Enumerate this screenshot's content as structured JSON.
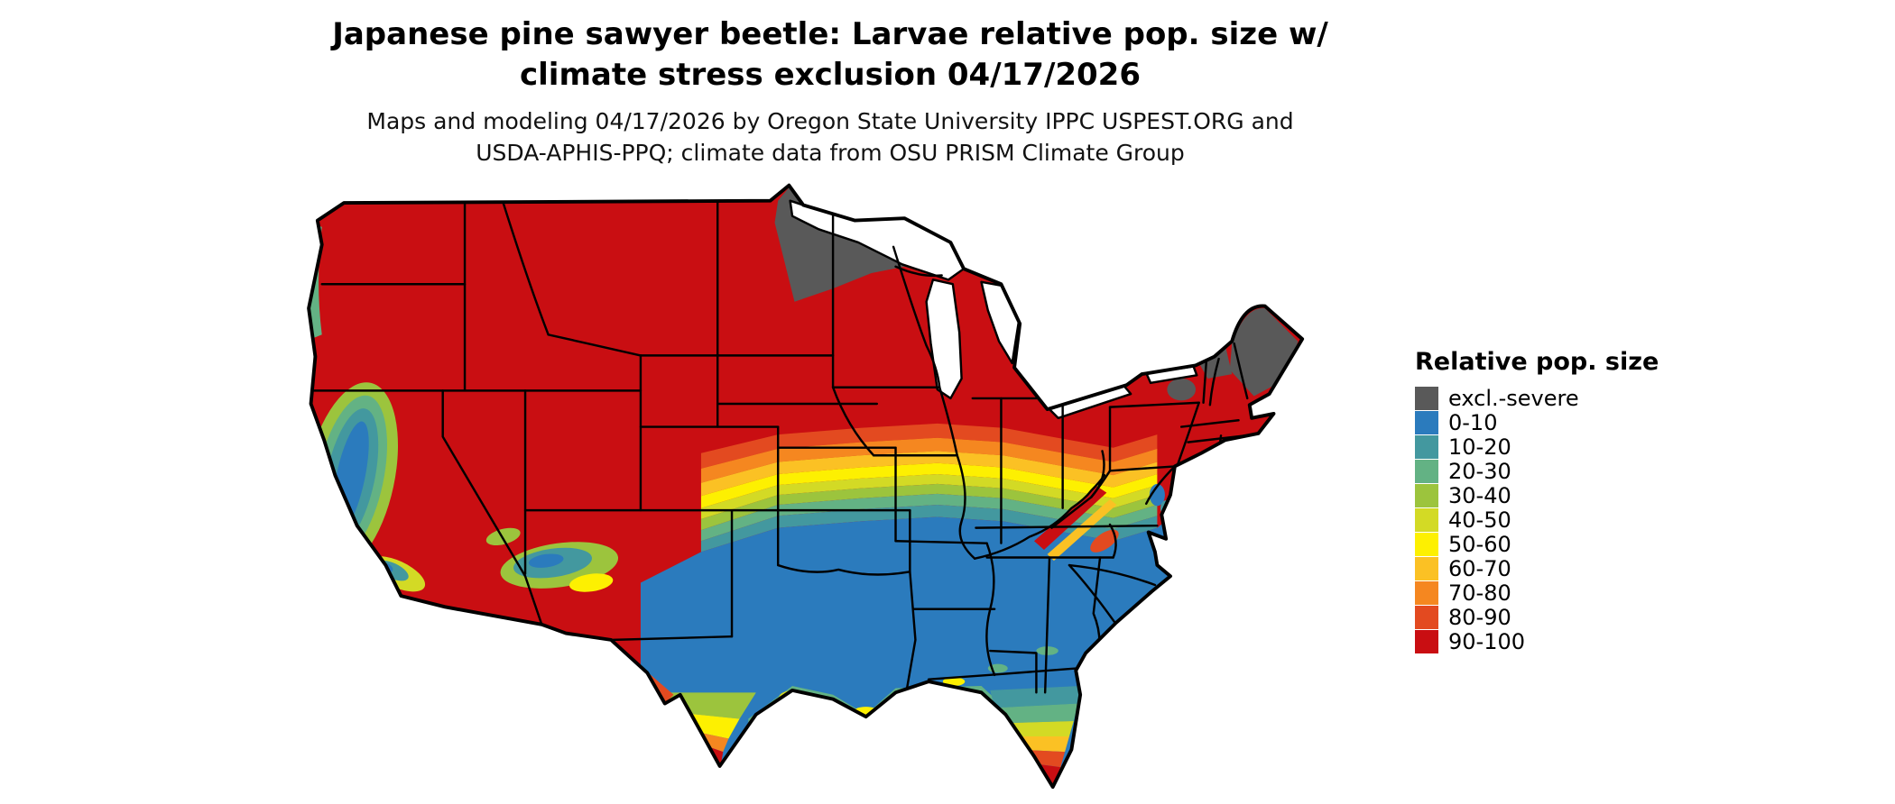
{
  "title": "Japanese pine sawyer beetle: Larvae relative pop. size w/ climate stress exclusion 04/17/2026",
  "subtitle": "Maps and modeling 04/17/2026 by Oregon State University IPPC USPEST.ORG and USDA-APHIS-PPQ; climate data from OSU PRISM Climate Group",
  "map": {
    "region": "Contiguous United States",
    "type": "choropleth",
    "date": "04/17/2026"
  },
  "legend": {
    "title": "Relative pop. size",
    "items": [
      {
        "label": "excl.-severe",
        "color": "#595959"
      },
      {
        "label": "0-10",
        "color": "#2b7bbd"
      },
      {
        "label": "10-20",
        "color": "#43989f"
      },
      {
        "label": "20-30",
        "color": "#63b284"
      },
      {
        "label": "30-40",
        "color": "#9cc43d"
      },
      {
        "label": "40-50",
        "color": "#d3da25"
      },
      {
        "label": "50-60",
        "color": "#fdf001"
      },
      {
        "label": "60-70",
        "color": "#fbc124"
      },
      {
        "label": "70-80",
        "color": "#f58720"
      },
      {
        "label": "80-90",
        "color": "#e34a20"
      },
      {
        "label": "90-100",
        "color": "#c90e12"
      }
    ]
  }
}
